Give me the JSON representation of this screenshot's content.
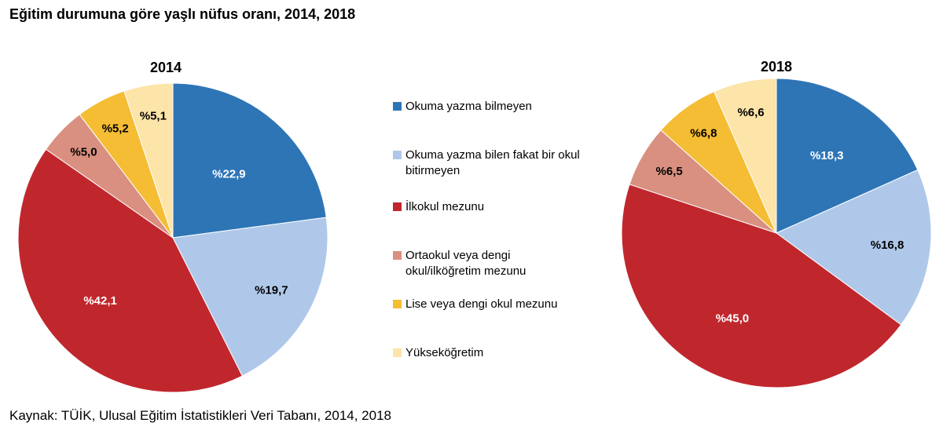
{
  "title": "Eğitim durumuna göre yaşlı nüfus oranı, 2014, 2018",
  "source": "Kaynak: TÜİK, Ulusal Eğitim İstatistikleri Veri Tabanı, 2014, 2018",
  "legend": [
    {
      "label": "Okuma yazma bilmeyen",
      "color": "#2e75b6"
    },
    {
      "label": "Okuma yazma bilen fakat bir okul bitirmeyen",
      "color": "#afc8ea"
    },
    {
      "label": "İlkokul mezunu",
      "color": "#c0272d"
    },
    {
      "label": "Ortaokul veya dengi okul/ilköğretim mezunu",
      "color": "#d99080"
    },
    {
      "label": "Lise veya dengi okul mezunu",
      "color": "#f4bd34"
    },
    {
      "label": "Yükseköğretim",
      "color": "#fde4a8"
    }
  ],
  "chart_data": [
    {
      "type": "pie",
      "title": "2014",
      "categories": [
        "Okuma yazma bilmeyen",
        "Okuma yazma bilen fakat bir okul bitirmeyen",
        "İlkokul mezunu",
        "Ortaokul veya dengi okul/ilköğretim mezunu",
        "Lise veya dengi okul mezunu",
        "Yükseköğretim"
      ],
      "values": [
        22.9,
        19.7,
        42.1,
        5.0,
        5.2,
        5.1
      ],
      "labels": [
        "%22,9",
        "%19,7",
        "%42,1",
        "%5,0",
        "%5,2",
        "%5,1"
      ],
      "colors": [
        "#2e75b6",
        "#afc8ea",
        "#c0272d",
        "#d99080",
        "#f4bd34",
        "#fde4a8"
      ],
      "label_colors": [
        "#ffffff",
        "#000000",
        "#ffffff",
        "#000000",
        "#000000",
        "#000000"
      ]
    },
    {
      "type": "pie",
      "title": "2018",
      "categories": [
        "Okuma yazma bilmeyen",
        "Okuma yazma bilen fakat bir okul bitirmeyen",
        "İlkokul mezunu",
        "Ortaokul veya dengi okul/ilköğretim mezunu",
        "Lise veya dengi okul mezunu",
        "Yükseköğretim"
      ],
      "values": [
        18.3,
        16.8,
        45.0,
        6.5,
        6.8,
        6.6
      ],
      "labels": [
        "%18,3",
        "%16,8",
        "%45,0",
        "%6,5",
        "%6,8",
        "%6,6"
      ],
      "colors": [
        "#2e75b6",
        "#afc8ea",
        "#c0272d",
        "#d99080",
        "#f4bd34",
        "#fde4a8"
      ],
      "label_colors": [
        "#ffffff",
        "#000000",
        "#ffffff",
        "#000000",
        "#000000",
        "#000000"
      ]
    }
  ]
}
